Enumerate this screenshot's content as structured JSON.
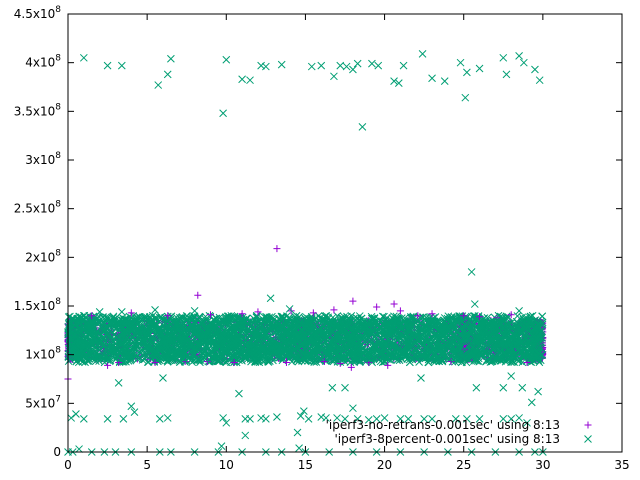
{
  "chart_data": {
    "type": "scatter",
    "title": "",
    "xlabel": "",
    "ylabel": "",
    "xlim": [
      0,
      35
    ],
    "ylim": [
      0,
      450000000
    ],
    "x_ticks": [
      {
        "value": 0,
        "label": "0"
      },
      {
        "value": 5,
        "label": "5"
      },
      {
        "value": 10,
        "label": "10"
      },
      {
        "value": 15,
        "label": "15"
      },
      {
        "value": 20,
        "label": "20"
      },
      {
        "value": 25,
        "label": "25"
      },
      {
        "value": 30,
        "label": "30"
      },
      {
        "value": 35,
        "label": "35"
      }
    ],
    "y_ticks": [
      {
        "value": 0,
        "label": "0"
      },
      {
        "value": 50000000,
        "label": "5x10",
        "exp": "7"
      },
      {
        "value": 100000000,
        "label": "1x10",
        "exp": "8"
      },
      {
        "value": 150000000,
        "label": "1.5x10",
        "exp": "8"
      },
      {
        "value": 200000000,
        "label": "2x10",
        "exp": "8"
      },
      {
        "value": 250000000,
        "label": "2.5x10",
        "exp": "8"
      },
      {
        "value": 300000000,
        "label": "3x10",
        "exp": "8"
      },
      {
        "value": 350000000,
        "label": "3.5x10",
        "exp": "8"
      },
      {
        "value": 400000000,
        "label": "4x10",
        "exp": "8"
      },
      {
        "value": 450000000,
        "label": "4.5x10",
        "exp": "8"
      }
    ],
    "grid": false,
    "legend_position": "bottom-right",
    "series": [
      {
        "name": "'iperf3-no-retrans-0.001sec' using 8:13",
        "color": "#9400d3",
        "marker": "plus",
        "points": [
          [
            0.0,
            75000000
          ],
          [
            8.2,
            161000000
          ],
          [
            13.2,
            209000000
          ],
          [
            18.0,
            155000000
          ],
          [
            20.6,
            152000000
          ],
          [
            21.0,
            145000000
          ],
          [
            16.8,
            146000000
          ],
          [
            19.5,
            149000000
          ],
          [
            14.1,
            145000000
          ],
          [
            25.0,
            140000000
          ],
          [
            2.5,
            89000000
          ],
          [
            17.9,
            87000000
          ],
          [
            6.3,
            140000000
          ],
          [
            12.0,
            144000000
          ],
          [
            23.0,
            142000000
          ],
          [
            28.0,
            141000000
          ],
          [
            26.0,
            139000000
          ],
          [
            9.0,
            141000000
          ],
          [
            4.0,
            143000000
          ],
          [
            1.5,
            140000000
          ],
          [
            11.0,
            142000000
          ],
          [
            15.5,
            143000000
          ],
          [
            22.1,
            140000000
          ],
          [
            27.1,
            138000000
          ],
          [
            7.4,
            93000000
          ],
          [
            10.5,
            92000000
          ],
          [
            13.8,
            92000000
          ],
          [
            16.2,
            93000000
          ],
          [
            19.0,
            92000000
          ],
          [
            24.2,
            93000000
          ],
          [
            29.0,
            92000000
          ],
          [
            3.2,
            92000000
          ],
          [
            5.5,
            92000000
          ],
          [
            8.8,
            93000000
          ],
          [
            20.2,
            89000000
          ],
          [
            17.2,
            91000000
          ]
        ],
        "dense_bands": [
          {
            "x": [
              0,
              30
            ],
            "y": [
              95000000,
              135000000
            ]
          }
        ],
        "bar_bursts": [
          {
            "x": [
              24.8,
              25.6
            ],
            "y": [
              95000000,
              135000000
            ]
          },
          {
            "x": [
              14.5,
              15.0
            ],
            "y": [
              95000000,
              135000000
            ]
          },
          {
            "x": [
              29.5,
              30.0
            ],
            "y": [
              95000000,
              135000000
            ]
          },
          {
            "x": [
              0,
              0.3
            ],
            "y": [
              95000000,
              135000000
            ]
          }
        ]
      },
      {
        "name": "'iperf3-8percent-0.001sec' using 8:13",
        "color": "#009e73",
        "marker": "x",
        "points": [
          [
            0.0,
            0
          ],
          [
            0.3,
            0
          ],
          [
            1.5,
            0
          ],
          [
            2.3,
            0
          ],
          [
            3.0,
            0
          ],
          [
            4.0,
            0
          ],
          [
            5.8,
            0
          ],
          [
            6.5,
            0
          ],
          [
            8.0,
            0
          ],
          [
            9.5,
            0
          ],
          [
            11.0,
            0
          ],
          [
            12.5,
            0
          ],
          [
            13.5,
            0
          ],
          [
            15.0,
            0
          ],
          [
            16.5,
            0
          ],
          [
            18.0,
            0
          ],
          [
            19.5,
            0
          ],
          [
            21.0,
            0
          ],
          [
            22.5,
            0
          ],
          [
            24.0,
            0
          ],
          [
            25.5,
            0
          ],
          [
            27.0,
            0
          ],
          [
            28.5,
            0
          ],
          [
            29.5,
            0
          ],
          [
            30.0,
            0
          ],
          [
            0.7,
            3000000
          ],
          [
            14.6,
            4000000
          ],
          [
            9.7,
            6000000
          ],
          [
            0.2,
            35000000
          ],
          [
            0.5,
            39000000
          ],
          [
            1.0,
            34000000
          ],
          [
            2.5,
            34000000
          ],
          [
            3.5,
            34000000
          ],
          [
            5.8,
            34000000
          ],
          [
            6.3,
            35000000
          ],
          [
            9.8,
            35000000
          ],
          [
            10.0,
            30000000
          ],
          [
            11.2,
            34000000
          ],
          [
            11.5,
            34000000
          ],
          [
            12.2,
            35000000
          ],
          [
            12.5,
            34000000
          ],
          [
            13.2,
            36000000
          ],
          [
            14.5,
            20000000
          ],
          [
            14.7,
            37000000
          ],
          [
            14.9,
            42000000
          ],
          [
            15.2,
            34000000
          ],
          [
            16.0,
            36000000
          ],
          [
            16.3,
            35000000
          ],
          [
            17.0,
            35000000
          ],
          [
            17.5,
            34000000
          ],
          [
            18.0,
            45000000
          ],
          [
            18.3,
            34000000
          ],
          [
            19.0,
            33000000
          ],
          [
            19.5,
            34000000
          ],
          [
            20.0,
            35000000
          ],
          [
            21.0,
            34000000
          ],
          [
            21.5,
            34000000
          ],
          [
            22.5,
            34000000
          ],
          [
            23.0,
            34000000
          ],
          [
            24.5,
            34000000
          ],
          [
            25.2,
            34000000
          ],
          [
            26.0,
            34000000
          ],
          [
            27.5,
            34000000
          ],
          [
            28.0,
            34000000
          ],
          [
            28.5,
            35000000
          ],
          [
            29.0,
            30000000
          ],
          [
            3.2,
            71000000
          ],
          [
            4.0,
            47000000
          ],
          [
            4.2,
            41000000
          ],
          [
            6.0,
            76000000
          ],
          [
            10.8,
            60000000
          ],
          [
            11.2,
            17000000
          ],
          [
            16.7,
            66000000
          ],
          [
            17.5,
            66000000
          ],
          [
            22.3,
            76000000
          ],
          [
            25.8,
            66000000
          ],
          [
            27.5,
            66000000
          ],
          [
            28.0,
            78000000
          ],
          [
            28.7,
            66000000
          ],
          [
            29.3,
            51000000
          ],
          [
            29.7,
            62000000
          ],
          [
            0.8,
            94000000
          ],
          [
            1.0,
            140000000
          ],
          [
            2.0,
            144000000
          ],
          [
            3.4,
            144000000
          ],
          [
            5.5,
            146000000
          ],
          [
            8.0,
            145000000
          ],
          [
            12.8,
            158000000
          ],
          [
            14.0,
            147000000
          ],
          [
            25.5,
            185000000
          ],
          [
            25.7,
            152000000
          ],
          [
            27.2,
            140000000
          ],
          [
            28.5,
            145000000
          ],
          [
            1.0,
            405000000
          ],
          [
            2.5,
            397000000
          ],
          [
            3.4,
            397000000
          ],
          [
            5.7,
            377000000
          ],
          [
            6.3,
            388000000
          ],
          [
            6.5,
            404000000
          ],
          [
            9.8,
            348000000
          ],
          [
            10.0,
            403000000
          ],
          [
            11.0,
            383000000
          ],
          [
            11.5,
            382000000
          ],
          [
            12.2,
            397000000
          ],
          [
            12.5,
            396000000
          ],
          [
            13.5,
            398000000
          ],
          [
            15.4,
            396000000
          ],
          [
            16.0,
            397000000
          ],
          [
            16.8,
            386000000
          ],
          [
            17.2,
            397000000
          ],
          [
            17.6,
            396000000
          ],
          [
            18.0,
            393000000
          ],
          [
            18.3,
            399000000
          ],
          [
            18.6,
            334000000
          ],
          [
            19.2,
            399000000
          ],
          [
            19.6,
            397000000
          ],
          [
            20.6,
            381000000
          ],
          [
            20.9,
            379000000
          ],
          [
            21.2,
            397000000
          ],
          [
            22.4,
            409000000
          ],
          [
            23.0,
            384000000
          ],
          [
            23.8,
            381000000
          ],
          [
            24.8,
            400000000
          ],
          [
            25.1,
            364000000
          ],
          [
            25.2,
            390000000
          ],
          [
            26.0,
            394000000
          ],
          [
            27.5,
            405000000
          ],
          [
            27.7,
            388000000
          ],
          [
            28.5,
            407000000
          ],
          [
            28.8,
            400000000
          ],
          [
            29.5,
            393000000
          ],
          [
            29.8,
            382000000
          ]
        ],
        "dense_bands": [
          {
            "x": [
              0,
              30
            ],
            "y": [
              92000000,
              140000000
            ]
          }
        ]
      }
    ]
  }
}
